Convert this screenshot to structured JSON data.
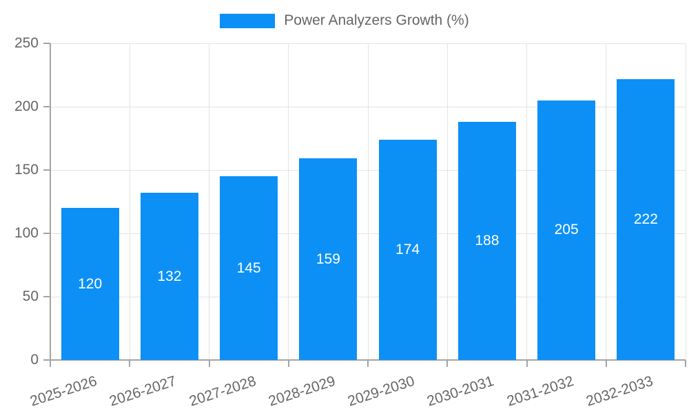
{
  "chart_data": {
    "type": "bar",
    "title": "Power Analyzers Growth (%)",
    "categories": [
      "2025-2026",
      "2026-2027",
      "2027-2028",
      "2028-2029",
      "2029-2030",
      "2030-2031",
      "2031-2032",
      "2032-2033"
    ],
    "values": [
      120,
      132,
      145,
      159,
      174,
      188,
      205,
      222
    ],
    "xlabel": "",
    "ylabel": "",
    "ylim": [
      0,
      250
    ],
    "yticks": [
      0,
      50,
      100,
      150,
      200,
      250
    ],
    "grid": true,
    "legend_position": "top",
    "colors": {
      "bar": "#0d90f5",
      "value_label": "#ffffff",
      "axis_text": "#666666",
      "gridline": "#e3e3e3",
      "axis_line": "#a3a3a3",
      "background": "#ffffff"
    }
  }
}
